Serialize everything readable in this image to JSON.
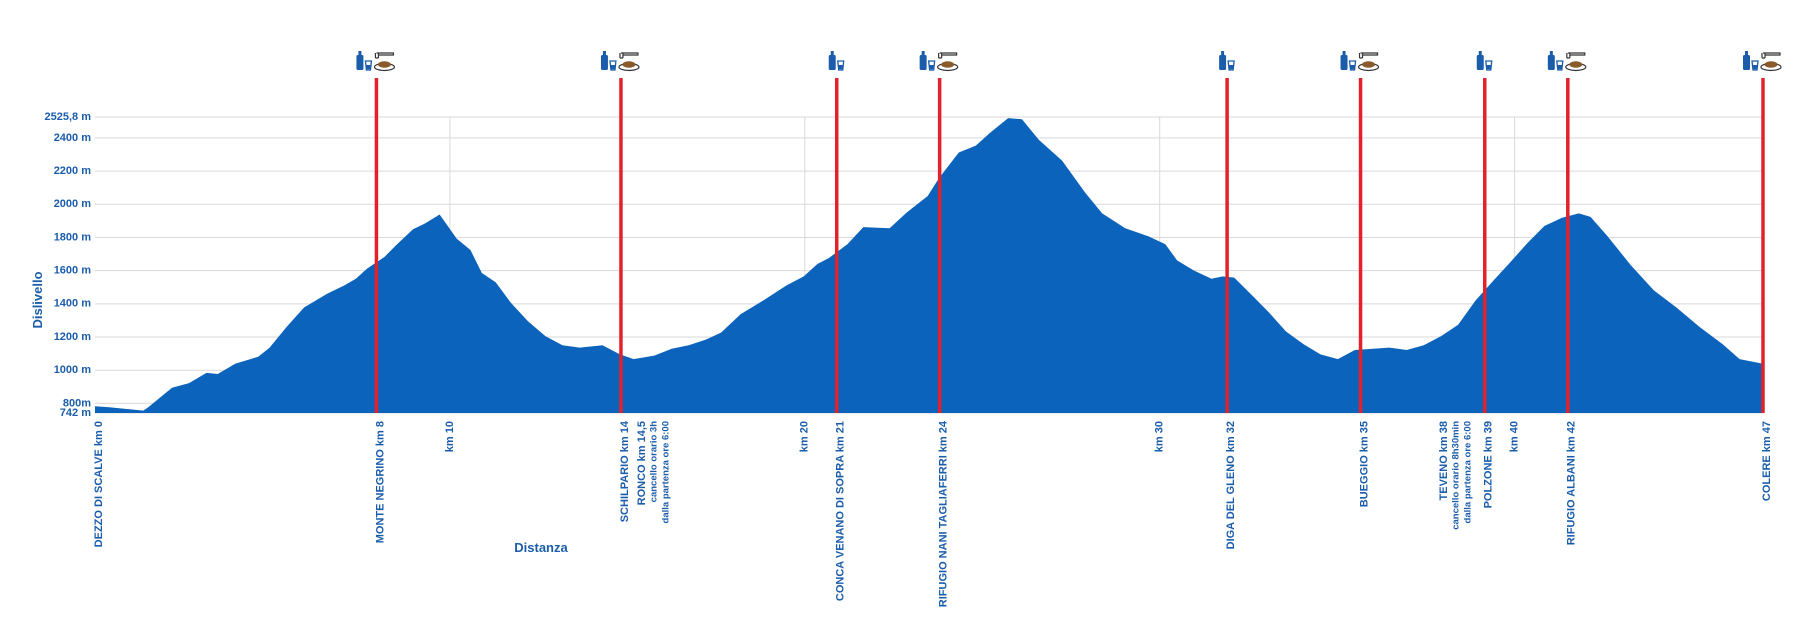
{
  "chart_data": {
    "type": "area",
    "y_label": "Dislivello",
    "x_label": "Distanza",
    "color": "#0b63bb",
    "line_color": "#e3212b",
    "grid": true,
    "xlim": [
      0,
      47
    ],
    "ylim": [
      742,
      2525.8
    ],
    "yticks": [
      {
        "value": 742,
        "label": "742 m"
      },
      {
        "value": 800,
        "label": "800m"
      },
      {
        "value": 1000,
        "label": "1000 m"
      },
      {
        "value": 1200,
        "label": "1200 m"
      },
      {
        "value": 1400,
        "label": "1400 m"
      },
      {
        "value": 1600,
        "label": "1600 m"
      },
      {
        "value": 1800,
        "label": "1800 m"
      },
      {
        "value": 2000,
        "label": "2000 m"
      },
      {
        "value": 2200,
        "label": "2200 m"
      },
      {
        "value": 2400,
        "label": "2400 m"
      },
      {
        "value": 2525.8,
        "label": "2525,8 m"
      }
    ],
    "xticks": [
      {
        "value": 10,
        "label": "km 10"
      },
      {
        "value": 20,
        "label": "km 20"
      },
      {
        "value": 30,
        "label": "km 30"
      },
      {
        "value": 40,
        "label": "km 40"
      }
    ],
    "x": [
      0,
      0.4,
      1.36,
      1.5,
      2.17,
      2.65,
      3.14,
      3.46,
      3.95,
      4.6,
      4.92,
      5.4,
      5.89,
      6.54,
      7.02,
      7.35,
      7.67,
      8.16,
      8.48,
      8.96,
      9.29,
      9.71,
      9.94,
      10.19,
      10.58,
      10.9,
      11.29,
      11.72,
      12.2,
      12.69,
      13.17,
      13.66,
      14.3,
      14.79,
      15.18,
      15.76,
      16.25,
      16.73,
      17.22,
      17.64,
      18.19,
      18.83,
      19.48,
      19.97,
      20.36,
      20.68,
      21.2,
      21.65,
      22.39,
      22.88,
      23.46,
      23.79,
      24.34,
      24.82,
      25.21,
      25.73,
      26.12,
      26.6,
      27.25,
      27.9,
      28.38,
      29.03,
      29.68,
      30.16,
      30.49,
      30.97,
      31.46,
      31.78,
      32.1,
      32.59,
      33.07,
      33.56,
      34.05,
      34.53,
      35.02,
      35.5,
      36.47,
      36.96,
      37.44,
      37.93,
      38.41,
      38.9,
      39.39,
      39.87,
      40.36,
      40.84,
      41.33,
      41.81,
      42.14,
      42.62,
      43.27,
      43.92,
      44.56,
      45.21,
      45.86,
      46.34,
      47
    ],
    "values": [
      783,
      777,
      756,
      777,
      894,
      922,
      984,
      977,
      1039,
      1081,
      1136,
      1261,
      1378,
      1461,
      1510,
      1551,
      1613,
      1683,
      1752,
      1849,
      1883,
      1938,
      1869,
      1793,
      1724,
      1586,
      1530,
      1406,
      1295,
      1205,
      1150,
      1136,
      1150,
      1095,
      1067,
      1088,
      1129,
      1150,
      1185,
      1226,
      1337,
      1420,
      1510,
      1565,
      1641,
      1676,
      1759,
      1862,
      1855,
      1952,
      2049,
      2160,
      2312,
      2353,
      2429,
      2519,
      2512,
      2387,
      2263,
      2070,
      1945,
      1855,
      1807,
      1759,
      1662,
      1600,
      1551,
      1565,
      1558,
      1454,
      1350,
      1233,
      1157,
      1095,
      1067,
      1122,
      1136,
      1122,
      1150,
      1205,
      1274,
      1420,
      1537,
      1648,
      1766,
      1869,
      1918,
      1945,
      1924,
      1807,
      1634,
      1482,
      1378,
      1261,
      1157,
      1067,
      1039
    ],
    "checkpoints": [
      {
        "label": "MONTE NEGRINO km 8",
        "x": 7.93,
        "food": true
      },
      {
        "label": "SCHILPARIO km 14",
        "x": 14.82,
        "food": true
      },
      {
        "label": "CONCA VENANO DI SOPRA km 21",
        "x": 20.9,
        "food": false
      },
      {
        "label": "RIFUGIO NANI TAGLIAFERRI km 24",
        "x": 23.8,
        "food": true
      },
      {
        "label": "DIGA DEL GLENO km 32",
        "x": 31.9,
        "food": false
      },
      {
        "label": "BUEGGIO km 35",
        "x": 35.66,
        "food": true
      },
      {
        "label": "POLZONE km 39",
        "x": 39.16,
        "food": false
      },
      {
        "label": "RIFUGIO ALBANI km 42",
        "x": 41.5,
        "food": true
      },
      {
        "label": "COLERE km 47",
        "x": 47,
        "food": true
      }
    ],
    "notes": [
      {
        "x": 0,
        "lines": [
          "DEZZO DI SCALVE km 0"
        ]
      },
      {
        "x": 15.3,
        "lines": [
          "RONCO km 14,5",
          "cancello orario 3h",
          "dalla partenza ore 6:00"
        ]
      },
      {
        "x": 37.9,
        "lines": [
          "TEVENO km 38",
          "cancello orario 8h30min",
          "dalla partenza ore 6:00"
        ]
      }
    ]
  }
}
